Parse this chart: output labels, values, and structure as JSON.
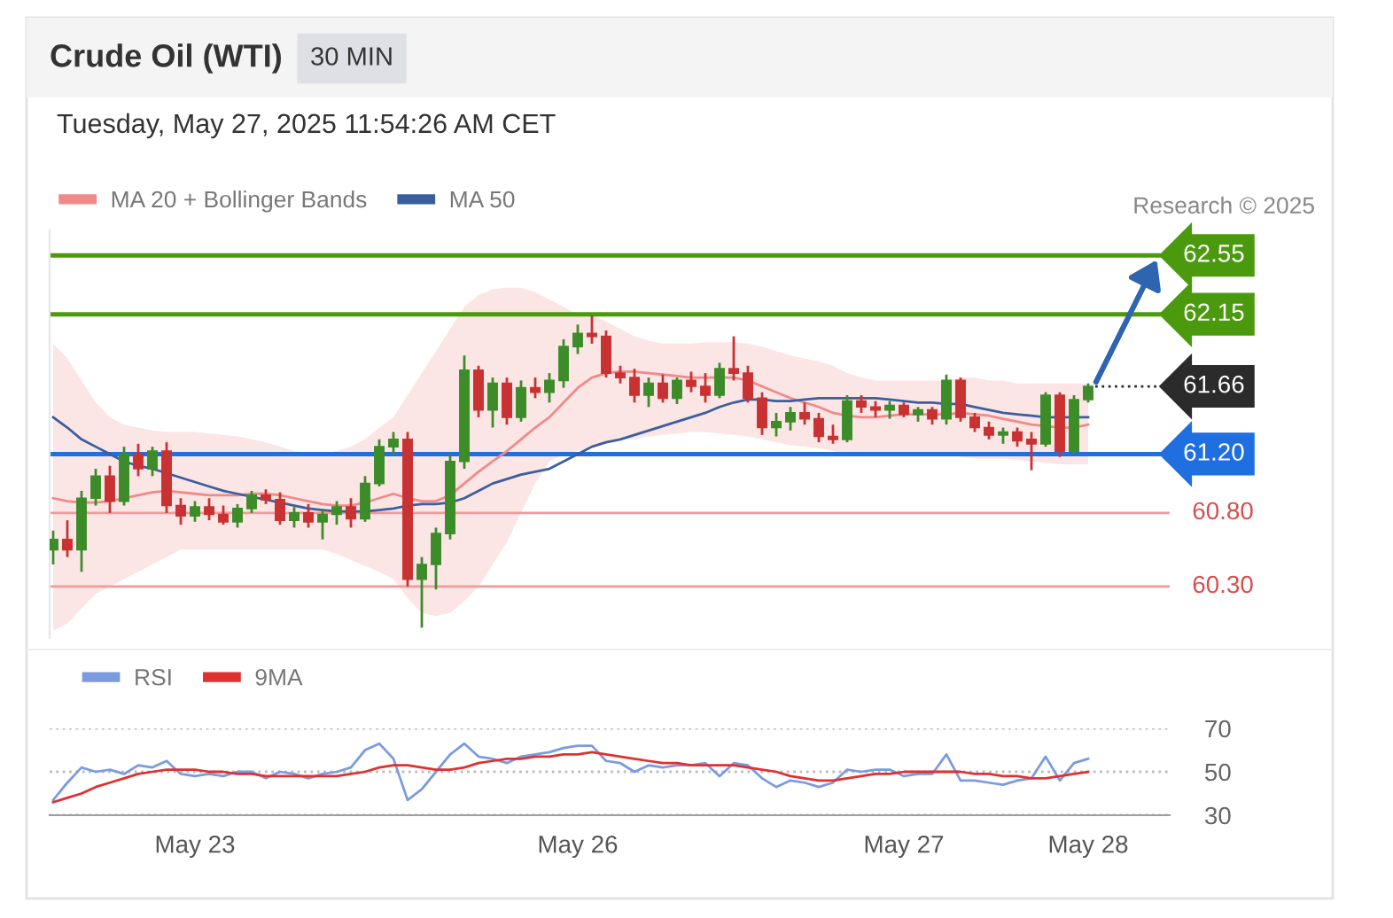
{
  "chart_data": [
    {
      "type": "candlestick",
      "title": "Crude Oil (WTI)",
      "subtitle": "30 MIN",
      "annotations": [
        "Tuesday, May 27, 2025 11:54:26 AM CET",
        "Research © 2025"
      ],
      "categories": [
        null,
        null,
        null,
        null,
        null,
        null,
        null,
        null,
        null,
        null,
        null,
        null,
        null,
        null,
        null,
        null,
        null,
        null,
        null,
        null,
        null,
        null,
        null,
        null,
        null,
        null,
        null,
        null,
        null,
        null,
        null,
        null,
        null,
        null,
        null,
        null,
        null,
        null,
        null,
        null,
        null,
        null,
        null,
        null,
        null,
        null,
        null,
        null,
        null,
        null,
        null,
        null,
        null,
        null,
        null,
        null,
        null,
        null,
        null,
        null,
        null,
        null,
        null,
        null,
        null,
        null,
        null,
        null,
        null,
        null,
        null,
        null,
        null,
        null
      ],
      "ohlc": [
        [
          60.55,
          60.68,
          60.45,
          60.62
        ],
        [
          60.62,
          60.75,
          60.5,
          60.55
        ],
        [
          60.55,
          60.95,
          60.4,
          60.9
        ],
        [
          60.9,
          61.1,
          60.85,
          61.05
        ],
        [
          61.05,
          61.12,
          60.8,
          60.88
        ],
        [
          60.88,
          61.25,
          60.85,
          61.2
        ],
        [
          61.2,
          61.27,
          61.05,
          61.1
        ],
        [
          61.1,
          61.25,
          61.05,
          61.22
        ],
        [
          61.22,
          61.28,
          60.8,
          60.85
        ],
        [
          60.85,
          60.9,
          60.72,
          60.78
        ],
        [
          60.78,
          60.88,
          60.74,
          60.84
        ],
        [
          60.84,
          60.9,
          60.75,
          60.79
        ],
        [
          60.79,
          60.85,
          60.72,
          60.74
        ],
        [
          60.74,
          60.86,
          60.7,
          60.83
        ],
        [
          60.83,
          60.95,
          60.8,
          60.92
        ],
        [
          60.92,
          60.96,
          60.86,
          60.89
        ],
        [
          60.89,
          60.94,
          60.72,
          60.75
        ],
        [
          60.75,
          60.84,
          60.7,
          60.8
        ],
        [
          60.8,
          60.86,
          60.7,
          60.74
        ],
        [
          60.74,
          60.82,
          60.62,
          60.79
        ],
        [
          60.79,
          60.88,
          60.72,
          60.84
        ],
        [
          60.84,
          60.9,
          60.7,
          60.76
        ],
        [
          60.76,
          61.05,
          60.74,
          61.0
        ],
        [
          61.0,
          61.3,
          60.98,
          61.25
        ],
        [
          61.25,
          61.35,
          61.2,
          61.3
        ],
        [
          61.3,
          61.35,
          60.3,
          60.35
        ],
        [
          60.35,
          60.5,
          60.02,
          60.45
        ],
        [
          60.45,
          60.7,
          60.28,
          60.66
        ],
        [
          60.66,
          61.2,
          60.62,
          61.15
        ],
        [
          61.15,
          61.87,
          61.1,
          61.77
        ],
        [
          61.77,
          61.8,
          61.45,
          61.5
        ],
        [
          61.5,
          61.72,
          61.38,
          61.68
        ],
        [
          61.68,
          61.72,
          61.4,
          61.45
        ],
        [
          61.45,
          61.7,
          61.42,
          61.65
        ],
        [
          61.65,
          61.72,
          61.58,
          61.62
        ],
        [
          61.62,
          61.75,
          61.55,
          61.7
        ],
        [
          61.7,
          61.98,
          61.65,
          61.93
        ],
        [
          61.93,
          62.08,
          61.88,
          62.02
        ],
        [
          62.02,
          62.14,
          61.95,
          62.0
        ],
        [
          62.0,
          62.04,
          61.72,
          61.75
        ],
        [
          61.75,
          61.8,
          61.68,
          61.72
        ],
        [
          61.72,
          61.78,
          61.55,
          61.6
        ],
        [
          61.6,
          61.72,
          61.52,
          61.68
        ],
        [
          61.68,
          61.74,
          61.55,
          61.58
        ],
        [
          61.58,
          61.72,
          61.54,
          61.7
        ],
        [
          61.7,
          61.76,
          61.62,
          61.66
        ],
        [
          61.66,
          61.75,
          61.55,
          61.6
        ],
        [
          61.6,
          61.82,
          61.58,
          61.78
        ],
        [
          61.78,
          62.0,
          61.7,
          61.75
        ],
        [
          61.75,
          61.8,
          61.55,
          61.58
        ],
        [
          61.58,
          61.62,
          61.33,
          61.38
        ],
        [
          61.38,
          61.48,
          61.32,
          61.42
        ],
        [
          61.42,
          61.52,
          61.36,
          61.48
        ],
        [
          61.48,
          61.55,
          61.4,
          61.44
        ],
        [
          61.44,
          61.48,
          61.28,
          61.32
        ],
        [
          61.32,
          61.4,
          61.27,
          61.3
        ],
        [
          61.3,
          61.6,
          61.28,
          61.56
        ],
        [
          61.56,
          61.6,
          61.48,
          61.52
        ],
        [
          61.52,
          61.56,
          61.45,
          61.5
        ],
        [
          61.5,
          61.56,
          61.44,
          61.53
        ],
        [
          61.53,
          61.55,
          61.45,
          61.47
        ],
        [
          61.47,
          61.52,
          61.42,
          61.5
        ],
        [
          61.5,
          61.52,
          61.4,
          61.44
        ],
        [
          61.44,
          61.74,
          61.4,
          61.7
        ],
        [
          61.7,
          61.72,
          61.42,
          61.45
        ],
        [
          61.45,
          61.48,
          61.35,
          61.38
        ],
        [
          61.38,
          61.42,
          61.3,
          61.33
        ],
        [
          61.33,
          61.38,
          61.27,
          61.35
        ],
        [
          61.35,
          61.38,
          61.25,
          61.29
        ],
        [
          61.3,
          61.35,
          61.09,
          61.27
        ],
        [
          61.27,
          61.62,
          61.25,
          61.6
        ],
        [
          61.6,
          61.62,
          61.18,
          61.22
        ],
        [
          61.22,
          61.6,
          61.2,
          61.57
        ],
        [
          61.57,
          61.68,
          61.55,
          61.66
        ]
      ],
      "series": [
        {
          "name": "MA 20 + Bollinger Bands",
          "type": "line",
          "color": "#f08a8a",
          "values": [
            60.9,
            60.88,
            60.87,
            60.87,
            60.88,
            60.9,
            60.92,
            60.94,
            60.95,
            60.94,
            60.93,
            60.92,
            60.92,
            60.92,
            60.93,
            60.93,
            60.92,
            60.9,
            60.88,
            60.86,
            60.85,
            60.85,
            60.87,
            60.9,
            60.93,
            60.9,
            60.88,
            60.88,
            60.92,
            61.0,
            61.08,
            61.15,
            61.22,
            61.3,
            61.38,
            61.45,
            61.55,
            61.65,
            61.72,
            61.75,
            61.76,
            61.76,
            61.75,
            61.74,
            61.73,
            61.72,
            61.72,
            61.72,
            61.72,
            61.7,
            61.66,
            61.62,
            61.58,
            61.55,
            61.52,
            61.48,
            61.46,
            61.45,
            61.45,
            61.46,
            61.47,
            61.47,
            61.47,
            61.47,
            61.48,
            61.47,
            61.46,
            61.44,
            61.42,
            61.4,
            61.39,
            61.38,
            61.38,
            61.4
          ],
          "upper": [
            61.95,
            61.85,
            61.7,
            61.55,
            61.45,
            61.4,
            61.38,
            61.36,
            61.35,
            61.35,
            61.35,
            61.34,
            61.33,
            61.32,
            61.3,
            61.28,
            61.25,
            61.22,
            61.2,
            61.2,
            61.22,
            61.25,
            61.3,
            61.38,
            61.45,
            61.6,
            61.75,
            61.9,
            62.05,
            62.2,
            62.28,
            62.32,
            62.33,
            62.33,
            62.3,
            62.25,
            62.2,
            62.15,
            62.15,
            62.1,
            62.05,
            62.0,
            61.97,
            61.95,
            61.95,
            61.95,
            61.96,
            61.96,
            61.96,
            61.95,
            61.93,
            61.9,
            61.87,
            61.85,
            61.83,
            61.8,
            61.75,
            61.72,
            61.7,
            61.7,
            61.7,
            61.7,
            61.7,
            61.7,
            61.72,
            61.72,
            61.7,
            61.7,
            61.68,
            61.68,
            61.68,
            61.68,
            61.68,
            61.68
          ],
          "lower": [
            60.0,
            60.05,
            60.15,
            60.25,
            60.3,
            60.35,
            60.4,
            60.45,
            60.5,
            60.55,
            60.55,
            60.55,
            60.55,
            60.55,
            60.55,
            60.55,
            60.55,
            60.55,
            60.55,
            60.55,
            60.52,
            60.48,
            60.44,
            60.4,
            60.35,
            60.22,
            60.12,
            60.1,
            60.12,
            60.2,
            60.3,
            60.45,
            60.6,
            60.8,
            61.0,
            61.15,
            61.2,
            61.22,
            61.25,
            61.28,
            61.3,
            61.3,
            61.32,
            61.33,
            61.34,
            61.35,
            61.35,
            61.34,
            61.33,
            61.32,
            61.3,
            61.28,
            61.26,
            61.25,
            61.24,
            61.22,
            61.2,
            61.2,
            61.2,
            61.2,
            61.2,
            61.2,
            61.2,
            61.2,
            61.18,
            61.17,
            61.17,
            61.17,
            61.16,
            61.15,
            61.14,
            61.13,
            61.13,
            61.13
          ]
        },
        {
          "name": "MA 50",
          "type": "line",
          "color": "#3b5f9e",
          "values": [
            61.45,
            61.38,
            61.3,
            61.25,
            61.2,
            61.15,
            61.12,
            61.1,
            61.07,
            61.04,
            61.01,
            60.98,
            60.95,
            60.93,
            60.91,
            60.89,
            60.87,
            60.85,
            60.83,
            60.82,
            60.81,
            60.81,
            60.81,
            60.82,
            60.83,
            60.85,
            60.86,
            60.86,
            60.87,
            60.9,
            60.95,
            61.0,
            61.03,
            61.06,
            61.08,
            61.1,
            61.15,
            61.2,
            61.25,
            61.28,
            61.3,
            61.33,
            61.36,
            61.39,
            61.42,
            61.45,
            61.48,
            61.52,
            61.55,
            61.57,
            61.57,
            61.56,
            61.56,
            61.57,
            61.58,
            61.58,
            61.58,
            61.58,
            61.58,
            61.57,
            61.56,
            61.55,
            61.55,
            61.54,
            61.54,
            61.52,
            61.5,
            61.48,
            61.47,
            61.46,
            61.45,
            61.45,
            61.45,
            61.45
          ]
        }
      ],
      "ylim": [
        59.95,
        62.72
      ],
      "ref_lines": [
        {
          "axis": "y",
          "value": 62.55,
          "label": "62.55",
          "color": "#4b9a0e"
        },
        {
          "axis": "y",
          "value": 62.15,
          "label": "62.15",
          "color": "#4b9a0e"
        },
        {
          "axis": "y",
          "value": 61.66,
          "label": "61.66",
          "color": "#2b2b2b",
          "line_style": "dotted"
        },
        {
          "axis": "y",
          "value": 61.2,
          "label": "61.20",
          "color": "#1f6fe0"
        },
        {
          "axis": "y",
          "value": 60.8,
          "label": "60.80",
          "color": "#f29a9a"
        },
        {
          "axis": "y",
          "value": 60.3,
          "label": "60.30",
          "color": "#f29a9a"
        }
      ],
      "legend": "top left",
      "tick_labels": false,
      "grid": false
    },
    {
      "type": "line",
      "categories": [
        null,
        null,
        null,
        null,
        null,
        null,
        null,
        null,
        null,
        null,
        "May 23",
        null,
        null,
        null,
        null,
        null,
        null,
        null,
        null,
        null,
        null,
        null,
        null,
        null,
        null,
        null,
        null,
        null,
        null,
        null,
        null,
        null,
        null,
        null,
        null,
        null,
        null,
        "May 26",
        null,
        null,
        null,
        null,
        null,
        null,
        null,
        null,
        null,
        null,
        null,
        null,
        null,
        null,
        null,
        null,
        null,
        null,
        null,
        null,
        null,
        null,
        "May 27",
        null,
        null,
        null,
        null,
        null,
        null,
        null,
        null,
        null,
        null,
        null,
        null,
        "May 28"
      ],
      "series": [
        {
          "name": "RSI",
          "color": "#7b9be0",
          "values": [
            37,
            45,
            52,
            50,
            51,
            49,
            53,
            52,
            55,
            49,
            48,
            49,
            48,
            50,
            50,
            47,
            50,
            49,
            47,
            49,
            50,
            52,
            60,
            63,
            56,
            37,
            42,
            50,
            58,
            63,
            57,
            56,
            54,
            57,
            58,
            59,
            61,
            62,
            62,
            55,
            54,
            50,
            53,
            52,
            53,
            53,
            54,
            48,
            54,
            53,
            47,
            43,
            46,
            45,
            43,
            45,
            51,
            50,
            51,
            51,
            48,
            49,
            49,
            58,
            46,
            46,
            45,
            44,
            46,
            47,
            57,
            46,
            54,
            56
          ]
        },
        {
          "name": "9MA",
          "color": "#e03131",
          "values": [
            36,
            38,
            40,
            43,
            45,
            47,
            49,
            50,
            51,
            51,
            51,
            50,
            50,
            49,
            49,
            48,
            48,
            48,
            48,
            48,
            48,
            49,
            50,
            52,
            53,
            53,
            52,
            51,
            51,
            52,
            54,
            55,
            56,
            56,
            57,
            57,
            58,
            58,
            59,
            58,
            57,
            56,
            55,
            54,
            54,
            53,
            53,
            53,
            53,
            52,
            51,
            50,
            48,
            47,
            46,
            46,
            47,
            48,
            49,
            49,
            50,
            50,
            50,
            50,
            50,
            49,
            49,
            48,
            48,
            47,
            47,
            48,
            49,
            50
          ]
        }
      ],
      "ylim": [
        30,
        70
      ],
      "yticks": [
        30,
        50,
        70
      ],
      "grid": "y",
      "legend": "top left"
    }
  ]
}
